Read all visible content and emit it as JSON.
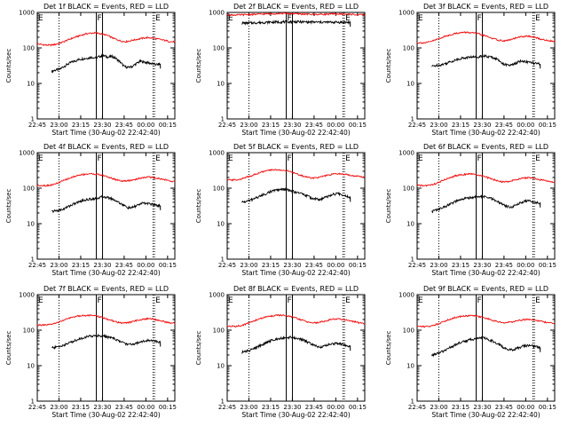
{
  "figure": {
    "y_axis_label": "Counts/sec",
    "x_axis_label": "Start Time (30-Aug-02 22:42:40)"
  },
  "colors": {
    "events": "#000000",
    "lld": "#ff0000"
  },
  "chart_data": [
    {
      "type": "line",
      "title": "Det 1f BLACK = Events, RED = LLD",
      "ylabel": "Counts/sec",
      "xlabel": "Start Time (30-Aug-02 22:42:40)",
      "yscale": "log",
      "ylim": [
        1,
        1000
      ],
      "xlim": [
        "22:45",
        "00:20"
      ],
      "y_tick_labels": [
        "1",
        "10",
        "100",
        "1000"
      ],
      "x_tick_labels": [
        "22:45",
        "23:00",
        "23:15",
        "23:30",
        "23:45",
        "00:00",
        "00:15"
      ],
      "markers": [
        {
          "label": "E",
          "t": "22:45"
        },
        {
          "label": "F",
          "t": "23:27"
        },
        {
          "label": "E",
          "t": "00:06"
        }
      ],
      "series": [
        {
          "name": "Events",
          "color": "#000000",
          "t_start": "22:55",
          "t_end": "00:10",
          "values": [
            22,
            24,
            25,
            30,
            35,
            40,
            44,
            48,
            50,
            52,
            55,
            52,
            58,
            60,
            55,
            58,
            50,
            40,
            30,
            28,
            30,
            36,
            42,
            40,
            38,
            36,
            34,
            35
          ]
        },
        {
          "name": "LLD",
          "color": "#ff0000",
          "t_start": "22:45",
          "t_end": "00:20",
          "values": [
            130,
            125,
            120,
            120,
            125,
            135,
            150,
            170,
            190,
            210,
            230,
            250,
            260,
            265,
            255,
            240,
            220,
            190,
            170,
            155,
            150,
            160,
            170,
            180,
            190,
            195,
            190,
            180,
            170,
            160,
            150,
            148
          ]
        }
      ]
    },
    {
      "type": "line",
      "title": "Det 2f BLACK = Events, RED = LLD",
      "ylabel": "Counts/sec",
      "xlabel": "Start Time (30-Aug-02 22:42:40)",
      "yscale": "log",
      "ylim": [
        1,
        1000
      ],
      "xlim": [
        "22:45",
        "00:20"
      ],
      "y_tick_labels": [
        "1",
        "10",
        "100",
        "1000"
      ],
      "x_tick_labels": [
        "22:45",
        "23:00",
        "23:15",
        "23:30",
        "23:45",
        "00:00",
        "00:15"
      ],
      "markers": [
        {
          "label": "E",
          "t": "22:45"
        },
        {
          "label": "F",
          "t": "23:27"
        },
        {
          "label": "E",
          "t": "00:06"
        }
      ],
      "series": [
        {
          "name": "Events",
          "color": "#000000",
          "t_start": "22:55",
          "t_end": "00:10",
          "values": [
            500,
            500,
            505,
            510,
            515,
            520,
            525,
            530,
            530,
            535,
            540,
            540,
            545,
            545,
            545,
            540,
            540,
            535,
            535,
            530,
            530,
            530,
            530,
            530,
            530,
            525,
            525,
            525
          ]
        },
        {
          "name": "LLD",
          "color": "#ff0000",
          "t_start": "22:45",
          "t_end": "00:20",
          "values": [
            850,
            850,
            850,
            855,
            860,
            870,
            880,
            890,
            900,
            910,
            920,
            930,
            935,
            935,
            930,
            920,
            910,
            900,
            890,
            880,
            880,
            885,
            890,
            895,
            900,
            900,
            895,
            890,
            880,
            870,
            860,
            860
          ]
        }
      ]
    },
    {
      "type": "line",
      "title": "Det 3f BLACK = Events, RED = LLD",
      "ylabel": "Counts/sec",
      "xlabel": "Start Time (30-Aug-02 22:42:40)",
      "yscale": "log",
      "ylim": [
        1,
        1000
      ],
      "xlim": [
        "22:45",
        "00:20"
      ],
      "y_tick_labels": [
        "1",
        "10",
        "100",
        "1000"
      ],
      "x_tick_labels": [
        "22:45",
        "23:00",
        "23:15",
        "23:30",
        "23:45",
        "00:00",
        "00:15"
      ],
      "markers": [
        {
          "label": "E",
          "t": "22:45"
        },
        {
          "label": "F",
          "t": "23:27"
        },
        {
          "label": "E",
          "t": "00:06"
        }
      ],
      "series": [
        {
          "name": "Events",
          "color": "#000000",
          "t_start": "22:55",
          "t_end": "00:10",
          "values": [
            30,
            32,
            33,
            35,
            38,
            42,
            46,
            50,
            52,
            54,
            56,
            55,
            58,
            60,
            56,
            55,
            50,
            42,
            35,
            32,
            33,
            37,
            42,
            42,
            40,
            38,
            36,
            35
          ]
        },
        {
          "name": "LLD",
          "color": "#ff0000",
          "t_start": "22:45",
          "t_end": "00:20",
          "values": [
            140,
            140,
            140,
            150,
            165,
            185,
            205,
            225,
            245,
            260,
            270,
            275,
            270,
            260,
            245,
            225,
            205,
            185,
            170,
            160,
            160,
            170,
            185,
            200,
            210,
            215,
            205,
            190,
            175,
            165,
            158,
            155
          ]
        }
      ]
    },
    {
      "type": "line",
      "title": "Det 4f BLACK = Events, RED = LLD",
      "ylabel": "Counts/sec",
      "xlabel": "Start Time (30-Aug-02 22:42:40)",
      "yscale": "log",
      "ylim": [
        1,
        1000
      ],
      "xlim": [
        "22:45",
        "00:20"
      ],
      "y_tick_labels": [
        "1",
        "10",
        "100",
        "1000"
      ],
      "x_tick_labels": [
        "22:45",
        "23:00",
        "23:15",
        "23:30",
        "23:45",
        "00:00",
        "00:15"
      ],
      "markers": [
        {
          "label": "E",
          "t": "22:45"
        },
        {
          "label": "F",
          "t": "23:27"
        },
        {
          "label": "E",
          "t": "00:06"
        }
      ],
      "series": [
        {
          "name": "Events",
          "color": "#000000",
          "t_start": "22:55",
          "t_end": "00:10",
          "values": [
            22,
            23,
            24,
            26,
            30,
            34,
            38,
            42,
            46,
            48,
            50,
            52,
            55,
            58,
            54,
            50,
            44,
            38,
            32,
            28,
            28,
            32,
            36,
            38,
            37,
            35,
            33,
            32
          ]
        },
        {
          "name": "LLD",
          "color": "#ff0000",
          "t_start": "22:45",
          "t_end": "00:20",
          "values": [
            120,
            120,
            118,
            122,
            130,
            145,
            165,
            185,
            205,
            225,
            240,
            250,
            255,
            250,
            240,
            225,
            205,
            185,
            170,
            160,
            158,
            165,
            175,
            190,
            200,
            205,
            200,
            190,
            180,
            170,
            160,
            155
          ]
        }
      ]
    },
    {
      "type": "line",
      "title": "Det 5f BLACK = Events, RED = LLD",
      "ylabel": "Counts/sec",
      "xlabel": "Start Time (30-Aug-02 22:42:40)",
      "yscale": "log",
      "ylim": [
        1,
        1000
      ],
      "xlim": [
        "22:45",
        "00:20"
      ],
      "y_tick_labels": [
        "1",
        "10",
        "100",
        "1000"
      ],
      "x_tick_labels": [
        "22:45",
        "23:00",
        "23:15",
        "23:30",
        "23:45",
        "00:00",
        "00:15"
      ],
      "markers": [
        {
          "label": "E",
          "t": "22:45"
        },
        {
          "label": "F",
          "t": "23:27"
        },
        {
          "label": "E",
          "t": "00:06"
        }
      ],
      "series": [
        {
          "name": "Events",
          "color": "#000000",
          "t_start": "22:55",
          "t_end": "00:10",
          "values": [
            40,
            42,
            45,
            50,
            56,
            62,
            70,
            78,
            85,
            90,
            92,
            90,
            85,
            80,
            75,
            70,
            62,
            55,
            50,
            48,
            50,
            56,
            62,
            68,
            70,
            66,
            60,
            55
          ]
        },
        {
          "name": "LLD",
          "color": "#ff0000",
          "t_start": "22:45",
          "t_end": "00:20",
          "values": [
            170,
            170,
            172,
            180,
            195,
            215,
            240,
            265,
            290,
            310,
            325,
            330,
            325,
            315,
            295,
            270,
            245,
            220,
            205,
            195,
            195,
            205,
            220,
            235,
            250,
            255,
            250,
            240,
            230,
            220,
            210,
            205
          ]
        }
      ]
    },
    {
      "type": "line",
      "title": "Det 6f BLACK = Events, RED = LLD",
      "ylabel": "Counts/sec",
      "xlabel": "Start Time (30-Aug-02 22:42:40)",
      "yscale": "log",
      "ylim": [
        1,
        1000
      ],
      "xlim": [
        "22:45",
        "00:20"
      ],
      "y_tick_labels": [
        "1",
        "10",
        "100",
        "1000"
      ],
      "x_tick_labels": [
        "22:45",
        "23:00",
        "23:15",
        "23:30",
        "23:45",
        "00:00",
        "00:15"
      ],
      "markers": [
        {
          "label": "E",
          "t": "22:45"
        },
        {
          "label": "F",
          "t": "23:27"
        },
        {
          "label": "E",
          "t": "00:06"
        }
      ],
      "series": [
        {
          "name": "Events",
          "color": "#000000",
          "t_start": "22:55",
          "t_end": "00:10",
          "values": [
            22,
            24,
            26,
            29,
            33,
            37,
            42,
            46,
            50,
            53,
            55,
            56,
            58,
            58,
            54,
            50,
            44,
            38,
            33,
            30,
            30,
            34,
            38,
            42,
            44,
            42,
            40,
            38
          ]
        },
        {
          "name": "LLD",
          "color": "#ff0000",
          "t_start": "22:45",
          "t_end": "00:20",
          "values": [
            120,
            118,
            118,
            122,
            132,
            148,
            168,
            190,
            210,
            228,
            240,
            248,
            250,
            245,
            232,
            215,
            195,
            178,
            162,
            152,
            150,
            158,
            170,
            182,
            192,
            196,
            192,
            182,
            170,
            160,
            152,
            148
          ]
        }
      ]
    },
    {
      "type": "line",
      "title": "Det 7f BLACK = Events, RED = LLD",
      "ylabel": "Counts/sec",
      "xlabel": "Start Time (30-Aug-02 22:42:40)",
      "yscale": "log",
      "ylim": [
        1,
        1000
      ],
      "xlim": [
        "22:45",
        "00:20"
      ],
      "y_tick_labels": [
        "1",
        "10",
        "100",
        "1000"
      ],
      "x_tick_labels": [
        "22:45",
        "23:00",
        "23:15",
        "23:30",
        "23:45",
        "00:00",
        "00:15"
      ],
      "markers": [
        {
          "label": "E",
          "t": "22:45"
        },
        {
          "label": "F",
          "t": "23:27"
        },
        {
          "label": "E",
          "t": "00:06"
        }
      ],
      "series": [
        {
          "name": "Events",
          "color": "#000000",
          "t_start": "22:55",
          "t_end": "00:10",
          "values": [
            32,
            33,
            35,
            38,
            42,
            47,
            52,
            57,
            62,
            66,
            68,
            70,
            70,
            68,
            64,
            60,
            54,
            48,
            43,
            40,
            40,
            43,
            47,
            50,
            52,
            50,
            48,
            46
          ]
        },
        {
          "name": "LLD",
          "color": "#ff0000",
          "t_start": "22:45",
          "t_end": "00:20",
          "values": [
            140,
            138,
            138,
            144,
            155,
            172,
            192,
            212,
            232,
            248,
            258,
            262,
            260,
            252,
            238,
            220,
            200,
            182,
            168,
            160,
            160,
            168,
            180,
            195,
            205,
            210,
            205,
            195,
            182,
            170,
            160,
            155
          ]
        }
      ]
    },
    {
      "type": "line",
      "title": "Det 8f BLACK = Events, RED = LLD",
      "ylabel": "Counts/sec",
      "xlabel": "Start Time (30-Aug-02 22:42:40)",
      "yscale": "log",
      "ylim": [
        1,
        1000
      ],
      "xlim": [
        "22:45",
        "00:20"
      ],
      "y_tick_labels": [
        "1",
        "10",
        "100",
        "1000"
      ],
      "x_tick_labels": [
        "22:45",
        "23:00",
        "23:15",
        "23:30",
        "23:45",
        "00:00",
        "00:15"
      ],
      "markers": [
        {
          "label": "E",
          "t": "22:45"
        },
        {
          "label": "F",
          "t": "23:27"
        },
        {
          "label": "E",
          "t": "00:06"
        }
      ],
      "series": [
        {
          "name": "Events",
          "color": "#000000",
          "t_start": "22:55",
          "t_end": "00:10",
          "values": [
            24,
            25,
            27,
            30,
            34,
            39,
            44,
            49,
            54,
            58,
            60,
            62,
            63,
            62,
            58,
            54,
            48,
            42,
            37,
            34,
            34,
            37,
            40,
            42,
            42,
            40,
            37,
            35
          ]
        },
        {
          "name": "LLD",
          "color": "#ff0000",
          "t_start": "22:45",
          "t_end": "00:20",
          "values": [
            130,
            128,
            128,
            134,
            145,
            162,
            182,
            202,
            222,
            240,
            252,
            260,
            262,
            258,
            245,
            228,
            208,
            188,
            172,
            162,
            160,
            168,
            180,
            194,
            204,
            208,
            202,
            192,
            180,
            168,
            158,
            152
          ]
        }
      ]
    },
    {
      "type": "line",
      "title": "Det 9f BLACK = Events, RED = LLD",
      "ylabel": "Counts/sec",
      "xlabel": "Start Time (30-Aug-02 22:42:40)",
      "yscale": "log",
      "ylim": [
        1,
        1000
      ],
      "xlim": [
        "22:45",
        "00:20"
      ],
      "y_tick_labels": [
        "1",
        "10",
        "100",
        "1000"
      ],
      "x_tick_labels": [
        "22:45",
        "23:00",
        "23:15",
        "23:30",
        "23:45",
        "00:00",
        "00:15"
      ],
      "markers": [
        {
          "label": "E",
          "t": "22:45"
        },
        {
          "label": "F",
          "t": "23:27"
        },
        {
          "label": "E",
          "t": "00:06"
        }
      ],
      "series": [
        {
          "name": "Events",
          "color": "#000000",
          "t_start": "22:55",
          "t_end": "00:10",
          "values": [
            20,
            21,
            23,
            26,
            30,
            34,
            39,
            44,
            48,
            52,
            55,
            58,
            62,
            60,
            55,
            50,
            44,
            38,
            32,
            28,
            28,
            30,
            33,
            36,
            37,
            36,
            34,
            32
          ]
        },
        {
          "name": "LLD",
          "color": "#ff0000",
          "t_start": "22:45",
          "t_end": "00:20",
          "values": [
            130,
            128,
            126,
            130,
            140,
            156,
            176,
            196,
            216,
            234,
            246,
            254,
            256,
            252,
            240,
            224,
            206,
            188,
            174,
            165,
            162,
            168,
            178,
            190,
            198,
            202,
            198,
            188,
            176,
            166,
            158,
            152
          ]
        }
      ]
    }
  ]
}
